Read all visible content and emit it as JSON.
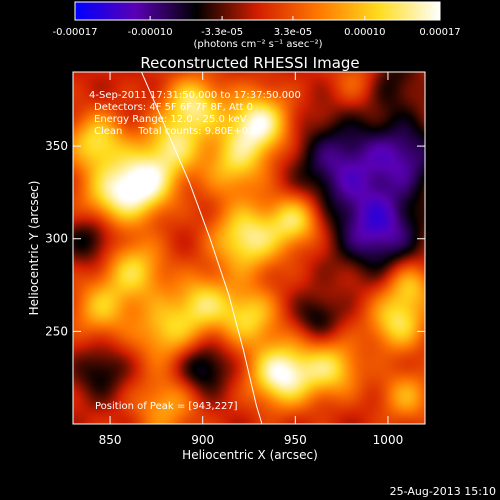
{
  "chart_data": {
    "type": "heatmap",
    "title": "Reconstructed RHESSI Image",
    "xlabel": "Heliocentric X (arcsec)",
    "ylabel": "Heliocentric Y (arcsec)",
    "xlim": [
      830,
      1020
    ],
    "ylim": [
      200,
      390
    ],
    "x_ticks": [
      850,
      900,
      950,
      1000
    ],
    "y_ticks": [
      250,
      300,
      350
    ],
    "x_tick_labels": [
      "850",
      "900",
      "950",
      "1000"
    ],
    "y_tick_labels": [
      "250",
      "300",
      "350"
    ],
    "colorbar": {
      "range": [
        -0.00017,
        0.00017
      ],
      "tick_values": [
        -0.00017,
        -0.0001,
        -3.3e-05,
        3.3e-05,
        0.0001,
        0.00017
      ],
      "tick_labels": [
        "-0.00017",
        "-0.00010",
        "-3.3e-05",
        "3.3e-05",
        "0.00010",
        "0.00017"
      ],
      "unit_label": "(photons cm⁻² s⁻¹ asec⁻²)",
      "colors": [
        "#0000ff",
        "#5a00b4",
        "#00000",
        "#d21e00",
        "#ff7800",
        "#ffdc1e",
        "#ffffff"
      ]
    },
    "annotations": [
      "4-Sep-2011 17:31:50.000 to 17:37:50.000",
      "Detectors: 4F 5F 6F 7F 8F, Att 0",
      "Energy Range: 12.0 - 25.0 keV",
      "Clean     Total counts: 9.80E+03"
    ],
    "peak_label": "Position of Peak = [943,227]",
    "peak": [
      943,
      227
    ],
    "limb_curve": [
      [
        867,
        390
      ],
      [
        880,
        360
      ],
      [
        893,
        330
      ],
      [
        904,
        300
      ],
      [
        914,
        270
      ],
      [
        922,
        240
      ],
      [
        929,
        210
      ],
      [
        932,
        200
      ]
    ],
    "sources": [
      {
        "x": 843,
        "y": 352,
        "amp": 0.00012,
        "s": 11
      },
      {
        "x": 850,
        "y": 322,
        "amp": 0.0001,
        "s": 12
      },
      {
        "x": 868,
        "y": 330,
        "amp": 0.00016,
        "s": 12
      },
      {
        "x": 884,
        "y": 350,
        "amp": 0.00011,
        "s": 11
      },
      {
        "x": 895,
        "y": 372,
        "amp": 0.00013,
        "s": 11
      },
      {
        "x": 930,
        "y": 362,
        "amp": 0.00016,
        "s": 12
      },
      {
        "x": 917,
        "y": 340,
        "amp": 0.0001,
        "s": 12
      },
      {
        "x": 924,
        "y": 300,
        "amp": 0.00014,
        "s": 13
      },
      {
        "x": 950,
        "y": 310,
        "amp": 0.00012,
        "s": 10
      },
      {
        "x": 863,
        "y": 283,
        "amp": 0.00011,
        "s": 12
      },
      {
        "x": 845,
        "y": 262,
        "amp": 9e-05,
        "s": 11
      },
      {
        "x": 880,
        "y": 250,
        "amp": 0.0001,
        "s": 12
      },
      {
        "x": 900,
        "y": 265,
        "amp": 0.00011,
        "s": 11
      },
      {
        "x": 925,
        "y": 258,
        "amp": 0.00011,
        "s": 11
      },
      {
        "x": 943,
        "y": 227,
        "amp": 0.00017,
        "s": 12
      },
      {
        "x": 970,
        "y": 230,
        "amp": 0.00011,
        "s": 11
      },
      {
        "x": 1005,
        "y": 255,
        "amp": 0.00012,
        "s": 11
      },
      {
        "x": 1012,
        "y": 275,
        "amp": 9e-05,
        "s": 9
      },
      {
        "x": 1010,
        "y": 215,
        "amp": 8e-05,
        "s": 10
      },
      {
        "x": 880,
        "y": 210,
        "amp": 8e-05,
        "s": 12
      },
      {
        "x": 985,
        "y": 385,
        "amp": 6e-05,
        "s": 10
      },
      {
        "x": 975,
        "y": 340,
        "amp": -0.0001,
        "s": 18
      },
      {
        "x": 995,
        "y": 305,
        "amp": -0.00012,
        "s": 16
      },
      {
        "x": 1010,
        "y": 345,
        "amp": -9e-05,
        "s": 14
      },
      {
        "x": 840,
        "y": 300,
        "amp": -7e-05,
        "s": 10
      },
      {
        "x": 900,
        "y": 230,
        "amp": -8e-05,
        "s": 10
      },
      {
        "x": 845,
        "y": 228,
        "amp": -6e-05,
        "s": 10
      },
      {
        "x": 1000,
        "y": 385,
        "amp": -6e-05,
        "s": 12
      },
      {
        "x": 962,
        "y": 258,
        "amp": -6e-05,
        "s": 9
      }
    ]
  },
  "timestamp": "25-Aug-2013 15:10"
}
